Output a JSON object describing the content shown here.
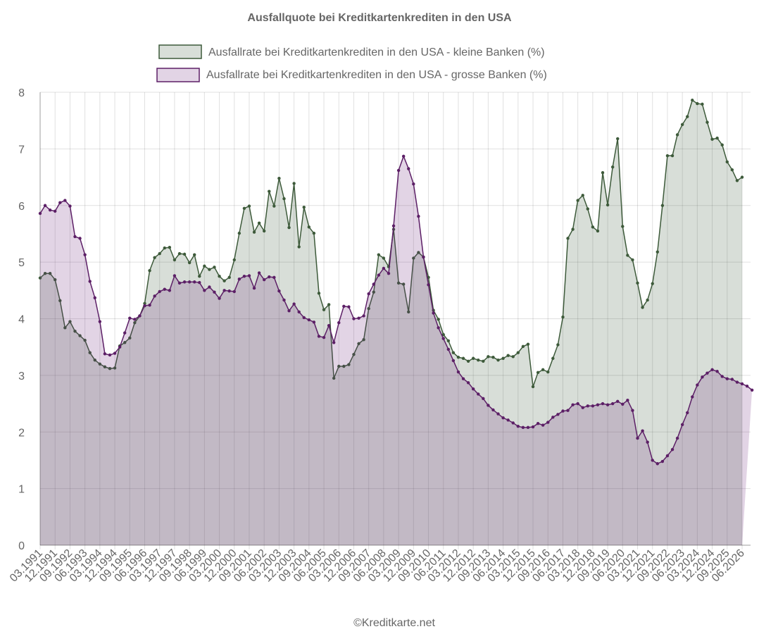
{
  "chart_data": {
    "type": "area",
    "title": "Ausfallquote bei Kreditkartenkrediten in den USA",
    "credit": "©Kreditkarte.net",
    "legend_position": "top-center",
    "grid": true,
    "ylim": [
      0,
      8
    ],
    "y_ticks": [
      "0",
      "1",
      "2",
      "3",
      "4",
      "5",
      "6",
      "7",
      "8"
    ],
    "x_tick_labels": [
      "03.1991",
      "12.1991",
      "09.1992",
      "06.1993",
      "03.1994",
      "12.1994",
      "09.1995",
      "06.1996",
      "03.1997",
      "12.1997",
      "09.1998",
      "06.1999",
      "03.2000",
      "12.2000",
      "09.2001",
      "06.2002",
      "03.2003",
      "12.2003",
      "09.2004",
      "06.2005",
      "03.2006",
      "12.2006",
      "09.2007",
      "06.2008",
      "03.2009",
      "12.2009",
      "09.2010",
      "06.2011",
      "03.2012",
      "12.2012",
      "09.2013",
      "06.2014",
      "03.2015",
      "12.2015",
      "09.2016",
      "06.2017",
      "03.2018",
      "12.2018",
      "09.2019",
      "06.2020",
      "03.2021",
      "12.2021",
      "09.2022",
      "06.2023",
      "03.2024",
      "12.2024",
      "09.2025",
      "06.2026"
    ],
    "series": [
      {
        "name": "Ausfallrate bei Kreditkartenkrediten in den USA - kleine Banken (%)",
        "color": "#3d5a3a",
        "fill": "rgba(61,90,58,0.2)",
        "values": [
          4.72,
          4.8,
          4.8,
          4.69,
          4.32,
          3.84,
          3.95,
          3.78,
          3.7,
          3.62,
          3.4,
          3.27,
          3.2,
          3.15,
          3.12,
          3.13,
          3.52,
          3.58,
          3.66,
          3.93,
          4.05,
          4.27,
          4.85,
          5.08,
          5.15,
          5.25,
          5.26,
          5.04,
          5.15,
          5.14,
          4.99,
          5.13,
          4.75,
          4.93,
          4.87,
          4.91,
          4.75,
          4.67,
          4.73,
          5.04,
          5.51,
          5.95,
          5.99,
          5.53,
          5.69,
          5.55,
          6.25,
          5.99,
          6.48,
          6.12,
          5.61,
          6.39,
          5.27,
          5.97,
          5.62,
          5.51,
          4.45,
          4.16,
          4.25,
          2.95,
          3.16,
          3.16,
          3.19,
          3.37,
          3.56,
          3.63,
          4.18,
          4.47,
          5.13,
          5.07,
          4.92,
          5.58,
          4.63,
          4.61,
          4.12,
          5.07,
          5.17,
          5.09,
          4.73,
          4.15,
          3.99,
          3.72,
          3.61,
          3.4,
          3.32,
          3.3,
          3.25,
          3.3,
          3.27,
          3.25,
          3.33,
          3.32,
          3.27,
          3.3,
          3.35,
          3.33,
          3.4,
          3.51,
          3.55,
          2.8,
          3.05,
          3.1,
          3.06,
          3.3,
          3.54,
          4.03,
          5.42,
          5.58,
          6.09,
          6.18,
          5.94,
          5.62,
          5.55,
          6.58,
          6.01,
          6.68,
          7.18,
          5.63,
          5.12,
          5.04,
          4.63,
          4.2,
          4.33,
          4.62,
          5.18,
          6.0,
          6.88,
          6.88,
          7.25,
          7.43,
          7.57,
          7.86,
          7.8,
          7.79,
          7.47,
          7.17,
          7.19,
          7.07,
          6.77,
          6.63,
          6.44,
          6.5
        ]
      },
      {
        "name": "Ausfallrate bei Kreditkartenkrediten in den USA - grosse Banken (%)",
        "color": "#5c1f66",
        "fill": "rgba(110,40,125,0.2)",
        "values": [
          5.86,
          6.0,
          5.92,
          5.9,
          6.05,
          6.09,
          5.99,
          5.45,
          5.42,
          5.13,
          4.66,
          4.37,
          3.95,
          3.38,
          3.36,
          3.39,
          3.5,
          3.75,
          4.01,
          3.99,
          4.05,
          4.23,
          4.24,
          4.4,
          4.48,
          4.52,
          4.5,
          4.76,
          4.63,
          4.65,
          4.65,
          4.65,
          4.64,
          4.5,
          4.56,
          4.47,
          4.36,
          4.5,
          4.49,
          4.48,
          4.7,
          4.75,
          4.76,
          4.54,
          4.81,
          4.69,
          4.74,
          4.73,
          4.49,
          4.33,
          4.14,
          4.26,
          4.12,
          4.02,
          3.98,
          3.94,
          3.69,
          3.67,
          3.88,
          3.58,
          3.93,
          4.22,
          4.21,
          4.0,
          4.01,
          4.05,
          4.44,
          4.61,
          4.77,
          4.89,
          4.8,
          5.64,
          6.62,
          6.87,
          6.65,
          6.38,
          5.81,
          5.09,
          4.6,
          4.1,
          3.84,
          3.65,
          3.46,
          3.26,
          3.06,
          2.94,
          2.87,
          2.76,
          2.67,
          2.59,
          2.47,
          2.39,
          2.32,
          2.25,
          2.21,
          2.16,
          2.1,
          2.08,
          2.08,
          2.09,
          2.15,
          2.12,
          2.17,
          2.26,
          2.31,
          2.37,
          2.38,
          2.48,
          2.5,
          2.43,
          2.46,
          2.46,
          2.48,
          2.5,
          2.48,
          2.5,
          2.54,
          2.49,
          2.56,
          2.38,
          1.89,
          2.02,
          1.82,
          1.5,
          1.44,
          1.48,
          1.58,
          1.69,
          1.89,
          2.13,
          2.34,
          2.62,
          2.83,
          2.97,
          3.04,
          3.1,
          3.07,
          2.98,
          2.94,
          2.93,
          2.88,
          2.85,
          2.81,
          2.74
        ]
      }
    ]
  }
}
